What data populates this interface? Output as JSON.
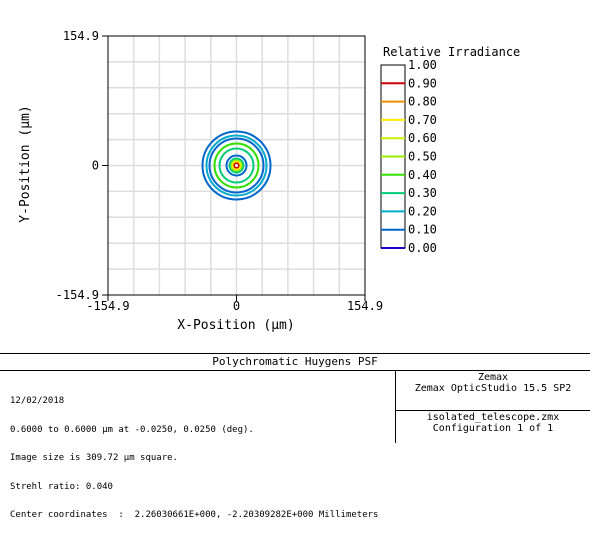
{
  "chart_data": {
    "type": "heatmap",
    "title": "Polychromatic Huygens PSF",
    "xlabel": "X-Position (µm)",
    "ylabel": "Y-Position (µm)",
    "xlim": [
      -154.9,
      154.9
    ],
    "ylim": [
      -154.9,
      154.9
    ],
    "x_ticks": [
      "-154.9",
      "0",
      "154.9"
    ],
    "y_ticks": [
      "154.9",
      "0",
      "-154.9"
    ],
    "grid": true,
    "legend_title": "Relative Irradiance",
    "legend": [
      {
        "label": "1.00",
        "color": "#ffffff"
      },
      {
        "label": "0.90",
        "color": "#cc0000"
      },
      {
        "label": "0.80",
        "color": "#e89000"
      },
      {
        "label": "0.70",
        "color": "#ffee00"
      },
      {
        "label": "0.60",
        "color": "#ccee00"
      },
      {
        "label": "0.50",
        "color": "#99ee00"
      },
      {
        "label": "0.40",
        "color": "#33dd00"
      },
      {
        "label": "0.30",
        "color": "#00cc77"
      },
      {
        "label": "0.20",
        "color": "#00aacc"
      },
      {
        "label": "0.10",
        "color": "#0066cc"
      },
      {
        "label": "0.00",
        "color": "#2200cc"
      }
    ],
    "contours": [
      {
        "level": 0.1,
        "radius": 34,
        "color": "#0066cc"
      },
      {
        "level": 0.2,
        "radius": 30,
        "color": "#00aacc"
      },
      {
        "level": 0.1,
        "radius": 27,
        "color": "#0066cc"
      },
      {
        "level": 0.4,
        "radius": 22,
        "color": "#33dd00"
      },
      {
        "level": 0.3,
        "radius": 17,
        "color": "#00cc77"
      },
      {
        "level": 0.1,
        "radius": 10,
        "color": "#0066cc"
      },
      {
        "level": 0.3,
        "radius": 7,
        "color": "#00cc77"
      },
      {
        "level": 0.5,
        "radius": 5,
        "color": "#99ee00"
      },
      {
        "level": 0.7,
        "radius": 3.5,
        "color": "#ffee00"
      },
      {
        "level": 0.9,
        "radius": 2,
        "color": "#cc0000"
      }
    ]
  },
  "info": {
    "title": "Polychromatic Huygens PSF",
    "lines": [
      "12/02/2018",
      "0.6000 to 0.6000 µm at -0.0250, 0.0250 (deg).",
      "Image size is 309.72 µm square.",
      "Strehl ratio: 0.040",
      "Center coordinates  :  2.26030661E+000, -2.20309282E+000 Millimeters"
    ],
    "company": "Zemax",
    "product": "Zemax OpticStudio 15.5 SP2",
    "file": "isolated_telescope.zmx",
    "config": "Configuration 1 of 1"
  }
}
